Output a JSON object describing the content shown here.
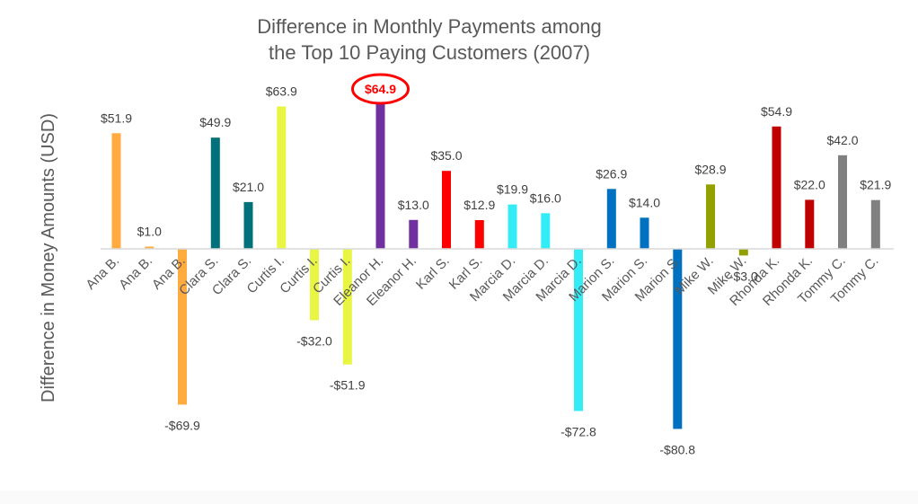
{
  "chart_data": {
    "type": "bar",
    "title": [
      "Difference in Monthly Payments among",
      "the Top  10 Paying Customers (2007)"
    ],
    "ylabel": "Difference in Money Amounts  (USD)",
    "xlabel": "",
    "categories": [
      "Ana B.",
      "Ana B.",
      "Ana B.",
      "Clara S.",
      "Clara S.",
      "Curtis I.",
      "Curtis I.",
      "Curtis I.",
      "Eleanor H.",
      "Eleanor H.",
      "Karl S.",
      "Karl S.",
      "Marcia D.",
      "Marcia D.",
      "Marcia D.",
      "Marion S.",
      "Marion S.",
      "Marion S.",
      "Mike W.",
      "Mike W.",
      "Rhonda K.",
      "Rhonda K.",
      "Tommy C.",
      "Tommy C."
    ],
    "values": [
      51.9,
      1.0,
      -69.9,
      49.9,
      21.0,
      63.9,
      -32.0,
      -51.9,
      64.9,
      13.0,
      35.0,
      12.9,
      19.9,
      16.0,
      -72.8,
      26.9,
      14.0,
      -80.8,
      28.9,
      -3.0,
      54.9,
      22.0,
      42.0,
      21.9
    ],
    "labels": [
      "$51.9",
      "$1.0",
      "-$69.9",
      "$49.9",
      "$21.0",
      "$63.9",
      "-$32.0",
      "-$51.9",
      "$64.9",
      "$13.0",
      "$35.0",
      "$12.9",
      "$19.9",
      "$16.0",
      "-$72.8",
      "$26.9",
      "$14.0",
      "-$80.8",
      "$28.9",
      "-$3.0",
      "$54.9",
      "$22.0",
      "$42.0",
      "$21.9"
    ],
    "colors": [
      "#ffab40",
      "#ffab40",
      "#ffab40",
      "#00707a",
      "#00707a",
      "#e8f542",
      "#e8f542",
      "#e8f542",
      "#7030a0",
      "#7030a0",
      "#ff0000",
      "#ff0000",
      "#33ecf5",
      "#33ecf5",
      "#33ecf5",
      "#0070c0",
      "#0070c0",
      "#0070c0",
      "#92a000",
      "#92a000",
      "#c00000",
      "#c00000",
      "#808080",
      "#808080"
    ],
    "highlight_index": 8,
    "highlight_color": "#ff0000",
    "ylim": [
      -85,
      70
    ],
    "grid": false,
    "legend": "none"
  }
}
